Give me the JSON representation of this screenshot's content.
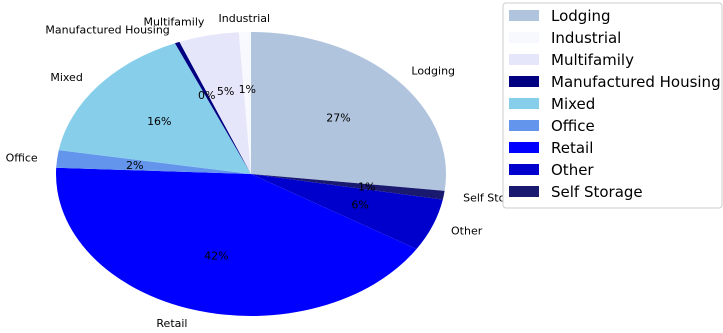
{
  "chart_data": {
    "type": "pie",
    "start_angle_deg": 90,
    "direction": "clockwise",
    "slices": [
      {
        "label": "Lodging",
        "value": 27,
        "pct_label": "27%",
        "color": "#b0c4de"
      },
      {
        "label": "Self Storage",
        "value": 1,
        "pct_label": "1%",
        "color": "#191970"
      },
      {
        "label": "Other",
        "value": 6,
        "pct_label": "6%",
        "color": "#0000cd"
      },
      {
        "label": "Retail",
        "value": 42,
        "pct_label": "42%",
        "color": "#0000ff"
      },
      {
        "label": "Office",
        "value": 2,
        "pct_label": "2%",
        "color": "#6495ed"
      },
      {
        "label": "Mixed",
        "value": 16,
        "pct_label": "16%",
        "color": "#87ceeb"
      },
      {
        "label": "Manufactured Housing",
        "value": 0.4,
        "pct_label": "0%",
        "color": "#000080"
      },
      {
        "label": "Multifamily",
        "value": 5,
        "pct_label": "5%",
        "color": "#e6e6fa"
      },
      {
        "label": "Industrial",
        "value": 1,
        "pct_label": "1%",
        "color": "#f8f8ff"
      }
    ],
    "legend": {
      "placement": "top-right",
      "entries": [
        {
          "label": "Lodging",
          "color": "#b0c4de"
        },
        {
          "label": "Industrial",
          "color": "#f8f8ff"
        },
        {
          "label": "Multifamily",
          "color": "#e6e6fa"
        },
        {
          "label": "Manufactured Housing",
          "color": "#000080"
        },
        {
          "label": "Mixed",
          "color": "#87ceeb"
        },
        {
          "label": "Office",
          "color": "#6495ed"
        },
        {
          "label": "Retail",
          "color": "#0000ff"
        },
        {
          "label": "Other",
          "color": "#0000cd"
        },
        {
          "label": "Self Storage",
          "color": "#191970"
        }
      ]
    }
  }
}
